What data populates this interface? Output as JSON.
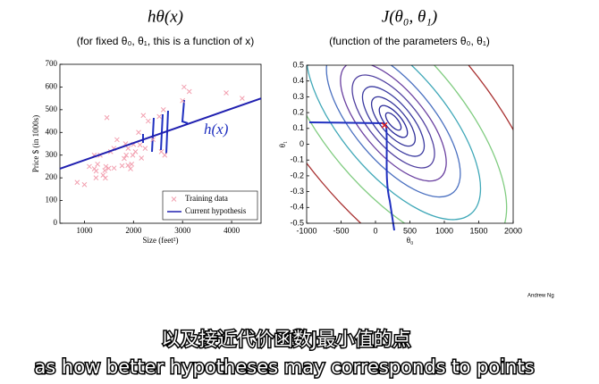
{
  "chart_data": [
    {
      "type": "scatter",
      "title": "hθ(x)",
      "subtitle": "(for fixed θ₀, θ₁, this is a function of x)",
      "x_label": "Size (feet²)",
      "y_label": "Price $ (in 1000s)",
      "annotation": "h(x)",
      "xlim": [
        500,
        4600
      ],
      "xticks": [
        1000,
        2000,
        3000,
        4000
      ],
      "ylim": [
        0,
        700
      ],
      "yticks": [
        0,
        100,
        200,
        300,
        400,
        500,
        600,
        700
      ],
      "legend": "lower right",
      "series": [
        {
          "name": "Training data",
          "color": "#f2a0b0",
          "marker": "x",
          "x": [
            2104,
            1600,
            2400,
            1416,
            3000,
            1985,
            1534,
            1427,
            1380,
            1494,
            1940,
            2000,
            1890,
            1268,
            2300,
            1320,
            1236,
            2609,
            3031,
            1767,
            1888,
            1604,
            1962,
            3890,
            1100,
            1458,
            2526,
            2200,
            2637,
            1839,
            1000,
            2040,
            3137,
            1811,
            1437,
            1239,
            2132,
            4215,
            2162,
            1664,
            2238,
            2567,
            1200,
            852,
            1852,
            1203
          ],
          "values": [
            400,
            330,
            369,
            232,
            540,
            300,
            315,
            199,
            212,
            242,
            240,
            347,
            330,
            260,
            450,
            300,
            200,
            500,
            600,
            253,
            255,
            243,
            260,
            574,
            250,
            465,
            470,
            475,
            300,
            350,
            170,
            315,
            580,
            285,
            250,
            230,
            345,
            550,
            287,
            368,
            330,
            315,
            300,
            180,
            300,
            240
          ]
        },
        {
          "name": "Current hypothesis",
          "color": "#2020b0",
          "marker": "line",
          "x": [
            500,
            4600
          ],
          "values": [
            240,
            550
          ]
        }
      ]
    },
    {
      "type": "contour",
      "title": "J(θ₀, θ₁)",
      "subtitle": "(function of the parameters θ₀, θ₁)",
      "x_label": "θ₀",
      "y_label": "θ₁",
      "xlim": [
        -1000,
        2000
      ],
      "xticks": [
        -1000,
        -500,
        0,
        500,
        1000,
        1500,
        2000
      ],
      "ylim": [
        -0.5,
        0.5
      ],
      "yticks": [
        -0.5,
        -0.4,
        -0.3,
        -0.2,
        -0.1,
        0,
        0.1,
        0.2,
        0.3,
        0.4,
        0.5
      ],
      "point": {
        "color": "#e02020",
        "x": [
          130
        ],
        "values": [
          0.12
        ]
      }
    }
  ],
  "footer": "Andrew Ng",
  "captions": [
    "以及接近代价函数J最小值的点",
    "as how better hypotheses may corresponds to points"
  ]
}
